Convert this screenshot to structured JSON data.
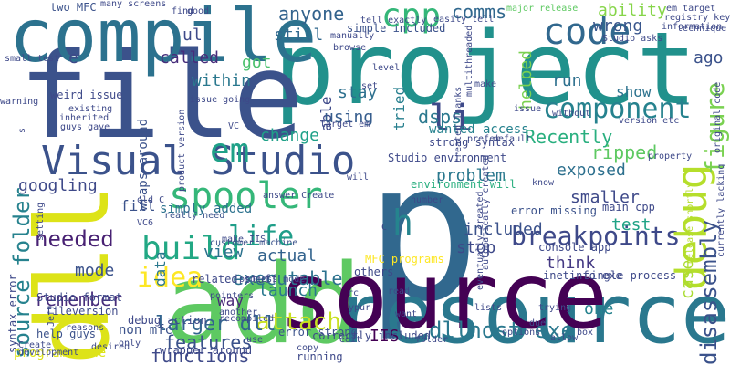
{
  "words": [
    {
      "text": "p",
      "color": "#31688e"
    },
    {
      "text": "project",
      "color": "#21918c"
    },
    {
      "text": "file",
      "color": "#3b528b"
    },
    {
      "text": "add",
      "color": "#5ec962"
    },
    {
      "text": "resource",
      "color": "#2a788e"
    },
    {
      "text": "compile",
      "color": "#2c728e"
    },
    {
      "text": "dll",
      "color": "#dde318"
    },
    {
      "text": "source",
      "color": "#440154"
    },
    {
      "text": "Visual Studio",
      "color": "#3b528b"
    },
    {
      "text": "spooler",
      "color": "#35b779"
    },
    {
      "text": "code",
      "color": "#31688e"
    },
    {
      "text": "component",
      "color": "#26828e"
    },
    {
      "text": "breakpoints",
      "color": "#3e4989"
    },
    {
      "text": "debug",
      "color": "#b5de2b"
    },
    {
      "text": "build",
      "color": "#22a884"
    },
    {
      "text": "idea",
      "color": "#fde725"
    },
    {
      "text": "attach",
      "color": "#c8e020"
    },
    {
      "text": "life",
      "color": "#1f9e89"
    },
    {
      "text": "h",
      "color": "#25848e"
    },
    {
      "text": "em",
      "color": "#1fa188"
    },
    {
      "text": "li",
      "color": "#3e4a89"
    },
    {
      "text": "cpp",
      "color": "#35b779"
    },
    {
      "text": "figure",
      "color": "#7ad151"
    },
    {
      "text": "disassembly",
      "color": "#3b528b"
    },
    {
      "text": "dllhost exe",
      "color": "#2a788e"
    },
    {
      "text": "larger dll",
      "color": "#32648e"
    },
    {
      "text": "source folder",
      "color": "#26828e"
    },
    {
      "text": "needed",
      "color": "#482173"
    },
    {
      "text": "remember",
      "color": "#472d7b"
    },
    {
      "text": "functions",
      "color": "#3e4989"
    },
    {
      "text": "features",
      "color": "#3b528b"
    },
    {
      "text": "executable",
      "color": "#2c728e"
    },
    {
      "text": "anyone",
      "color": "#33638d"
    },
    {
      "text": "comms",
      "color": "#31688e"
    },
    {
      "text": "ability",
      "color": "#86d549"
    },
    {
      "text": "wrong",
      "color": "#39568c"
    },
    {
      "text": "show",
      "color": "#2c728e"
    },
    {
      "text": "ago",
      "color": "#3b528b"
    },
    {
      "text": "case",
      "color": "#aadc32"
    },
    {
      "text": "run",
      "color": "#2d708e"
    },
    {
      "text": "helped",
      "color": "#7ad151"
    },
    {
      "text": "stay",
      "color": "#2d708e"
    },
    {
      "text": "able",
      "color": "#3e4989"
    },
    {
      "text": "still",
      "color": "#31688e"
    },
    {
      "text": "got",
      "color": "#4ac16d"
    },
    {
      "text": "called",
      "color": "#472d7b"
    },
    {
      "text": "ul",
      "color": "#3e4a89"
    },
    {
      "text": "within",
      "color": "#2a788e"
    },
    {
      "text": "e",
      "color": "#3e4989"
    },
    {
      "text": "using",
      "color": "#365d8d"
    },
    {
      "text": "change",
      "color": "#1fa188"
    },
    {
      "text": "tried",
      "color": "#277f8e"
    },
    {
      "text": "dsps",
      "color": "#2a788e"
    },
    {
      "text": "Recently",
      "color": "#29af7f"
    },
    {
      "text": "ripped",
      "color": "#5ec962"
    },
    {
      "text": "exposed",
      "color": "#2d708e"
    },
    {
      "text": "problem",
      "color": "#2a788e"
    },
    {
      "text": "smaller",
      "color": "#3e4989"
    },
    {
      "text": "test",
      "color": "#20a386"
    },
    {
      "text": "included",
      "color": "#3b528b"
    },
    {
      "text": "stop",
      "color": "#3e4989"
    },
    {
      "text": "think",
      "color": "#443983"
    },
    {
      "text": "one",
      "color": "#26828e"
    },
    {
      "text": "IIS",
      "color": "#440154"
    },
    {
      "text": "launch",
      "color": "#2a788e"
    },
    {
      "text": "actual",
      "color": "#33638d"
    },
    {
      "text": "view",
      "color": "#2c728e"
    },
    {
      "text": "mode",
      "color": "#3b528b"
    },
    {
      "text": "way",
      "color": "#482878"
    },
    {
      "text": "googling",
      "color": "#3e4989"
    },
    {
      "text": "data",
      "color": "#2a788e"
    },
    {
      "text": "fill",
      "color": "#3b528b"
    },
    {
      "text": "wanted access",
      "color": "#26828e"
    },
    {
      "text": "strong syntax",
      "color": "#3e4989"
    },
    {
      "text": "error strong",
      "color": "#3b528b"
    },
    {
      "text": "programs one",
      "color": "#dde318"
    },
    {
      "text": "wraps around",
      "color": "#3b528b"
    },
    {
      "text": "simply added",
      "color": "#2c728e"
    },
    {
      "text": "simple included",
      "color": "#3b528b"
    },
    {
      "text": "Studio environment",
      "color": "#3e4989"
    },
    {
      "text": "environment will",
      "color": "#29af7f"
    },
    {
      "text": "main cpp",
      "color": "#3e4989"
    },
    {
      "text": "error missing",
      "color": "#3b528b"
    },
    {
      "text": "console app",
      "color": "#3e4989"
    },
    {
      "text": "MFC programs",
      "color": "#fde725"
    },
    {
      "text": "inetinfo exe",
      "color": "#3e4989"
    },
    {
      "text": "single process",
      "color": "#3e4989"
    },
    {
      "text": "non mfc",
      "color": "#3b528b"
    },
    {
      "text": "debug action",
      "color": "#3e4989"
    },
    {
      "text": "related stuff",
      "color": "#3e4989"
    },
    {
      "text": "recompiled",
      "color": "#3e4989"
    },
    {
      "text": "process mode",
      "color": "#3e4989"
    },
    {
      "text": "make IIS",
      "color": "#3e4989"
    },
    {
      "text": "customer machine",
      "color": "#3b528b"
    },
    {
      "text": "really need",
      "color": "#3b528b"
    },
    {
      "text": "Studio format",
      "color": "#3e4989"
    },
    {
      "text": "help guys",
      "color": "#3b528b"
    },
    {
      "text": "fileversion",
      "color": "#3e4989"
    },
    {
      "text": "syntax error",
      "color": "#3e4989"
    },
    {
      "text": "wrapper around",
      "color": "#3e4989"
    },
    {
      "text": "running",
      "color": "#3e4989"
    },
    {
      "text": "correctly included",
      "color": "#3e4989"
    },
    {
      "text": "others",
      "color": "#3e4989"
    },
    {
      "text": "two MFC",
      "color": "#3b528b"
    },
    {
      "text": "many screens",
      "color": "#3e4989"
    },
    {
      "text": "small test",
      "color": "#3e4989"
    },
    {
      "text": "weird issue",
      "color": "#3e4989"
    },
    {
      "text": "existing",
      "color": "#3e4989"
    },
    {
      "text": "inherited",
      "color": "#3e4989"
    },
    {
      "text": "guys gave",
      "color": "#3e4989"
    },
    {
      "text": "tell exactly",
      "color": "#3e4989"
    },
    {
      "text": "easily tell",
      "color": "#3e4989"
    },
    {
      "text": "major release",
      "color": "#5ec962"
    },
    {
      "text": "em target",
      "color": "#3e4989"
    },
    {
      "text": "registry key",
      "color": "#3e4989"
    },
    {
      "text": "technique",
      "color": "#3e4989"
    },
    {
      "text": "information",
      "color": "#3e4989"
    },
    {
      "text": "Studio asks",
      "color": "#3e4989"
    },
    {
      "text": "version etc",
      "color": "#3e4989"
    },
    {
      "text": "original code",
      "color": "#3e4989"
    },
    {
      "text": "currently lacking",
      "color": "#3e4989"
    },
    {
      "text": "release shortly",
      "color": "#b5de2b"
    },
    {
      "text": "eventually created",
      "color": "#3e4989"
    },
    {
      "text": "automatically created",
      "color": "#3e4989"
    },
    {
      "text": "target em",
      "color": "#3e4989"
    },
    {
      "text": "answer Create",
      "color": "#3e4989"
    },
    {
      "text": "pointers",
      "color": "#3e4989"
    },
    {
      "text": "another",
      "color": "#3e4989"
    },
    {
      "text": "VC6",
      "color": "#3e4989"
    },
    {
      "text": "old C",
      "color": "#3e4989"
    },
    {
      "text": "rc",
      "color": "#3e4989"
    },
    {
      "text": "ypur",
      "color": "#3e4989"
    },
    {
      "text": "trying",
      "color": "#3e4989"
    },
    {
      "text": "Jeff",
      "color": "#3e4989"
    },
    {
      "text": "product version",
      "color": "#3e4989"
    },
    {
      "text": "created Thanks",
      "color": "#3e4989"
    },
    {
      "text": "multithreaded",
      "color": "#3e4989"
    },
    {
      "text": "manually",
      "color": "#3e4989"
    },
    {
      "text": "browse",
      "color": "#3e4989"
    },
    {
      "text": "find",
      "color": "#3e4989"
    },
    {
      "text": "good",
      "color": "#3e4989"
    },
    {
      "text": "level",
      "color": "#3e4989"
    },
    {
      "text": "set",
      "color": "#3e4989"
    },
    {
      "text": "make",
      "color": "#3e4989"
    },
    {
      "text": "issue",
      "color": "#3e4989"
    },
    {
      "text": "without",
      "color": "#3e4989"
    },
    {
      "text": "prefer",
      "color": "#3e4989"
    },
    {
      "text": "default",
      "color": "#3e4989"
    },
    {
      "text": "property",
      "color": "#3e4989"
    },
    {
      "text": "know",
      "color": "#3e4989"
    },
    {
      "text": "will",
      "color": "#3e4989"
    },
    {
      "text": "number",
      "color": "#3e4989"
    },
    {
      "text": "C",
      "color": "#3e4989"
    },
    {
      "text": "read",
      "color": "#3e4989"
    },
    {
      "text": "want",
      "color": "#3e4989"
    },
    {
      "text": "lists",
      "color": "#3e4989"
    },
    {
      "text": "due",
      "color": "#3e4989"
    },
    {
      "text": "allow",
      "color": "#3e4989"
    },
    {
      "text": "box",
      "color": "#3e4989"
    },
    {
      "text": "folder",
      "color": "#3e4989"
    },
    {
      "text": "options",
      "color": "#3e4989"
    },
    {
      "text": "copy",
      "color": "#3e4989"
    },
    {
      "text": "use",
      "color": "#3e4989"
    },
    {
      "text": "desired",
      "color": "#3e4989"
    },
    {
      "text": "reasons",
      "color": "#3e4989"
    },
    {
      "text": "Create",
      "color": "#3e4989"
    },
    {
      "text": "development",
      "color": "#3e4989"
    },
    {
      "text": "only",
      "color": "#3e4989"
    },
    {
      "text": "edit",
      "color": "#3e4989"
    },
    {
      "text": "setting",
      "color": "#3e4989"
    },
    {
      "text": "issue going",
      "color": "#3e4989"
    },
    {
      "text": "warning",
      "color": "#3e4989"
    },
    {
      "text": "s",
      "color": "#3e4989"
    },
    {
      "text": "VC",
      "color": "#3e4989"
    }
  ]
}
